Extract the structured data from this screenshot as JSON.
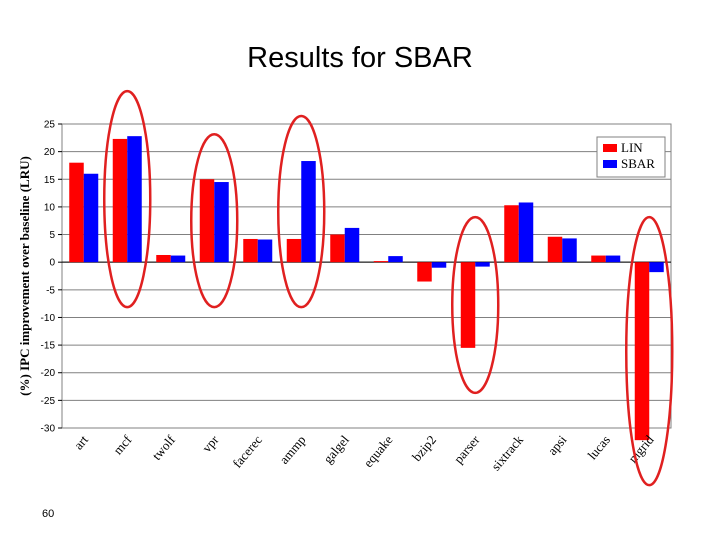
{
  "slide": {
    "title": "Results for SBAR",
    "page_number": "60"
  },
  "colors": {
    "lin": "#ff0000",
    "sbar": "#0000ff",
    "highlight_ellipse": "#e02020",
    "plot_background": "#ffffff",
    "gridline": "#808080"
  },
  "chart_data": {
    "type": "bar",
    "title": "",
    "xlabel": "",
    "ylabel": "(%) IPC improvement over baseline (LRU)",
    "ylim": [
      -30,
      25
    ],
    "yticks": [
      25,
      20,
      15,
      10,
      5,
      0,
      -5,
      -10,
      -15,
      -20,
      -25,
      -30
    ],
    "grid": true,
    "legend_position": "top-right",
    "categories": [
      "art",
      "mcf",
      "twolf",
      "vpr",
      "facerec",
      "ammp",
      "galgel",
      "equake",
      "bzip2",
      "parser",
      "sixtrack",
      "apsi",
      "lucas",
      "mgrid"
    ],
    "series": [
      {
        "name": "LIN",
        "values": [
          18,
          22.3,
          1.3,
          15,
          4.2,
          4.2,
          5,
          0.2,
          -3.5,
          -15.5,
          10.3,
          4.6,
          1.2,
          -32.2
        ]
      },
      {
        "name": "SBAR",
        "values": [
          16,
          22.8,
          1.2,
          14.5,
          4.1,
          18.3,
          6.2,
          1.1,
          -1,
          -0.8,
          10.8,
          4.3,
          1.2,
          -1.8
        ]
      }
    ],
    "highlighted_categories": [
      "mcf",
      "vpr",
      "ammp",
      "parser",
      "mgrid"
    ]
  }
}
